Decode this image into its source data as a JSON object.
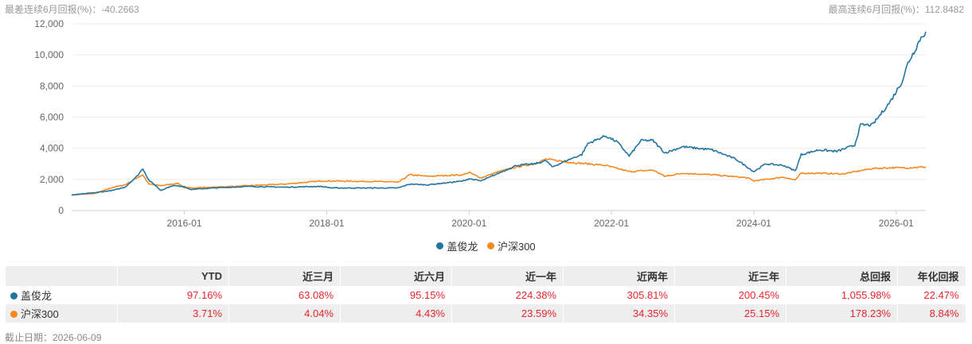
{
  "top_stats": {
    "min": "最差连续6月回报(%)：-40.2663",
    "max": "最高连续6月回报(%)：112.8482"
  },
  "colors": {
    "fund": "#2274a0",
    "index": "#f5891f",
    "negative": "#e8262d",
    "header_bg": "#eeeeee"
  },
  "chart_data": {
    "type": "line",
    "x_start": "2014-06",
    "x_end": "2026-06",
    "ylim": [
      0,
      12000
    ],
    "y_ticks": [
      "0",
      "2,000",
      "4,000",
      "6,000",
      "8,000",
      "10,000",
      "12,000"
    ],
    "x_ticks": [
      "2016-01",
      "2018-01",
      "2020-01",
      "2022-01",
      "2024-01",
      "2026-01"
    ],
    "grid": true,
    "legend_position": "bottom",
    "series": [
      {
        "name": "盖俊龙",
        "color": "#2274a0",
        "points": [
          [
            "2014-06",
            1000
          ],
          [
            "2014-10",
            1150
          ],
          [
            "2015-01",
            1300
          ],
          [
            "2015-03",
            1500
          ],
          [
            "2015-05",
            2200
          ],
          [
            "2015-06",
            2700
          ],
          [
            "2015-07",
            1950
          ],
          [
            "2015-08",
            1650
          ],
          [
            "2015-09",
            1300
          ],
          [
            "2015-11",
            1600
          ],
          [
            "2016-01",
            1550
          ],
          [
            "2016-02",
            1350
          ],
          [
            "2016-06",
            1450
          ],
          [
            "2016-12",
            1550
          ],
          [
            "2017-06",
            1500
          ],
          [
            "2017-12",
            1550
          ],
          [
            "2018-02",
            1450
          ],
          [
            "2018-12",
            1450
          ],
          [
            "2019-01",
            1450
          ],
          [
            "2019-03",
            1700
          ],
          [
            "2019-06",
            1650
          ],
          [
            "2019-12",
            1900
          ],
          [
            "2020-01",
            2050
          ],
          [
            "2020-03",
            1900
          ],
          [
            "2020-06",
            2400
          ],
          [
            "2020-09",
            2900
          ],
          [
            "2020-12",
            3000
          ],
          [
            "2021-02",
            3200
          ],
          [
            "2021-03",
            2800
          ],
          [
            "2021-06",
            3300
          ],
          [
            "2021-08",
            3600
          ],
          [
            "2021-09",
            4300
          ],
          [
            "2021-12",
            4800
          ],
          [
            "2022-02",
            4400
          ],
          [
            "2022-04",
            3500
          ],
          [
            "2022-06",
            4500
          ],
          [
            "2022-08",
            4500
          ],
          [
            "2022-10",
            3700
          ],
          [
            "2023-01",
            4100
          ],
          [
            "2023-06",
            3900
          ],
          [
            "2023-10",
            3300
          ],
          [
            "2024-01",
            2500
          ],
          [
            "2024-03",
            3000
          ],
          [
            "2024-06",
            2900
          ],
          [
            "2024-08",
            2550
          ],
          [
            "2024-09",
            3600
          ],
          [
            "2024-12",
            3900
          ],
          [
            "2025-03",
            3800
          ],
          [
            "2025-06",
            4200
          ],
          [
            "2025-07",
            5500
          ],
          [
            "2025-09",
            5500
          ],
          [
            "2025-11",
            6500
          ],
          [
            "2025-12",
            7000
          ],
          [
            "2026-02",
            8300
          ],
          [
            "2026-03",
            9500
          ],
          [
            "2026-04",
            10200
          ],
          [
            "2026-05",
            11000
          ],
          [
            "2026-06",
            11500
          ]
        ]
      },
      {
        "name": "沪深300",
        "color": "#f5891f",
        "points": [
          [
            "2014-06",
            1000
          ],
          [
            "2014-10",
            1100
          ],
          [
            "2015-01",
            1500
          ],
          [
            "2015-03",
            1650
          ],
          [
            "2015-05",
            2100
          ],
          [
            "2015-06",
            2300
          ],
          [
            "2015-07",
            1700
          ],
          [
            "2015-09",
            1600
          ],
          [
            "2015-12",
            1750
          ],
          [
            "2016-01",
            1450
          ],
          [
            "2016-06",
            1500
          ],
          [
            "2016-12",
            1600
          ],
          [
            "2017-06",
            1700
          ],
          [
            "2017-12",
            1900
          ],
          [
            "2018-02",
            1900
          ],
          [
            "2018-12",
            1850
          ],
          [
            "2019-01",
            1800
          ],
          [
            "2019-03",
            2300
          ],
          [
            "2019-06",
            2200
          ],
          [
            "2019-12",
            2300
          ],
          [
            "2020-01",
            2450
          ],
          [
            "2020-03",
            2100
          ],
          [
            "2020-06",
            2500
          ],
          [
            "2020-09",
            2800
          ],
          [
            "2020-12",
            3000
          ],
          [
            "2021-02",
            3300
          ],
          [
            "2021-06",
            3100
          ],
          [
            "2021-12",
            2900
          ],
          [
            "2022-04",
            2500
          ],
          [
            "2022-08",
            2600
          ],
          [
            "2022-10",
            2200
          ],
          [
            "2023-01",
            2400
          ],
          [
            "2023-06",
            2300
          ],
          [
            "2023-12",
            2100
          ],
          [
            "2024-01",
            1900
          ],
          [
            "2024-06",
            2150
          ],
          [
            "2024-08",
            1950
          ],
          [
            "2024-09",
            2400
          ],
          [
            "2024-12",
            2400
          ],
          [
            "2025-04",
            2350
          ],
          [
            "2025-09",
            2700
          ],
          [
            "2025-12",
            2750
          ],
          [
            "2026-03",
            2750
          ],
          [
            "2026-06",
            2800
          ]
        ]
      }
    ]
  },
  "legend": [
    {
      "label": "盖俊龙",
      "color": "#2274a0"
    },
    {
      "label": "沪深300",
      "color": "#f5891f"
    }
  ],
  "table": {
    "headers": [
      "",
      "YTD",
      "近三月",
      "近六月",
      "近一年",
      "近两年",
      "近三年",
      "总回报",
      "年化回报"
    ],
    "rows": [
      {
        "name": "盖俊龙",
        "color": "#2274a0",
        "values": [
          "97.16%",
          "63.08%",
          "95.15%",
          "224.38%",
          "305.81%",
          "200.45%",
          "1,055.98%",
          "22.47%"
        ]
      },
      {
        "name": "沪深300",
        "color": "#f5891f",
        "values": [
          "3.71%",
          "4.04%",
          "4.43%",
          "23.59%",
          "34.35%",
          "25.15%",
          "178.23%",
          "8.84%"
        ]
      }
    ]
  },
  "footer": {
    "date": "截止日期：2026-06-09"
  }
}
